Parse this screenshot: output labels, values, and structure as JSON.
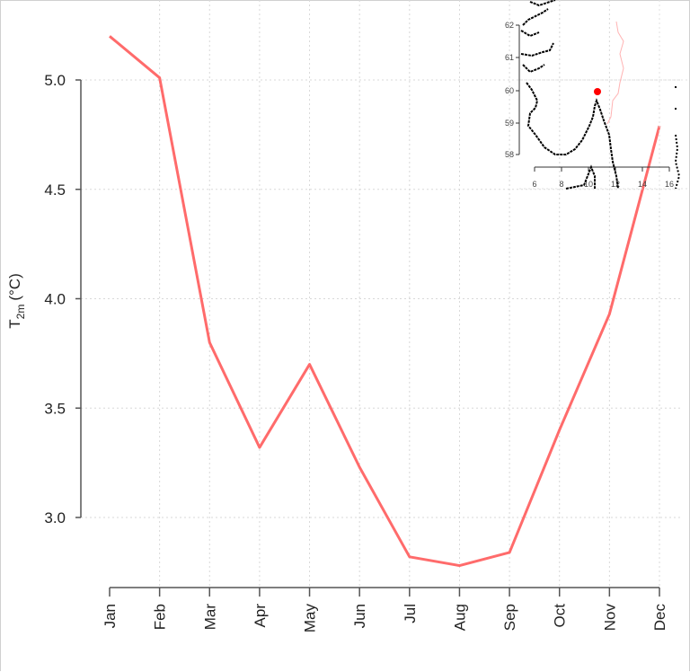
{
  "chart_data": {
    "type": "line",
    "title": "",
    "xlabel": "",
    "ylabel": "T2m (°C)",
    "ylabel_main": "T",
    "ylabel_sub": "2m",
    "ylabel_unit": "(°C)",
    "categories": [
      "Jan",
      "Feb",
      "Mar",
      "Apr",
      "May",
      "Jun",
      "Jul",
      "Aug",
      "Sep",
      "Oct",
      "Nov",
      "Dec"
    ],
    "series": [
      {
        "name": "T2m",
        "color": "#ff6b6b",
        "values": [
          5.2,
          5.01,
          3.8,
          3.32,
          3.7,
          3.23,
          2.82,
          2.78,
          2.84,
          3.4,
          3.93,
          4.79
        ]
      }
    ],
    "ylim": [
      2.7,
      5.2
    ],
    "yticks": [
      "3.0",
      "3.5",
      "4.0",
      "4.5",
      "5.0"
    ],
    "grid": true,
    "legend": null,
    "inset": {
      "type": "map",
      "x_ticks": [
        "6",
        "8",
        "10",
        "12",
        "14",
        "16"
      ],
      "y_ticks": [
        "58",
        "59",
        "60",
        "61",
        "62"
      ],
      "marker": {
        "lon": 10.8,
        "lat": 59.9,
        "color": "#ff0000"
      }
    }
  }
}
